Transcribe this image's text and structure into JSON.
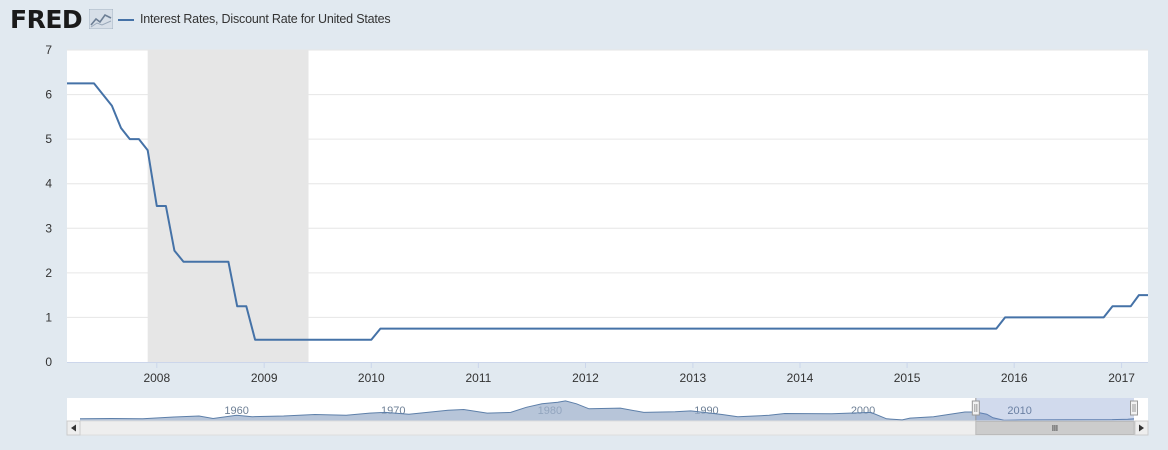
{
  "app": {
    "logo_text": "FRED"
  },
  "colors": {
    "series": "#4572a7",
    "recession": "#e6e6e6",
    "grid": "#e6e6e6",
    "plot_bg": "#ffffff",
    "page_bg": "#e1e9f0",
    "navigator_fill": "#9fb1cc",
    "navigator_line": "#5d7fa9",
    "navigator_mask": "rgba(102,133,194,0.3)"
  },
  "chart_data": {
    "type": "line",
    "title": "",
    "xlabel": "",
    "ylabel": "",
    "ylim": [
      0,
      7
    ],
    "y_ticks": [
      "0",
      "1",
      "2",
      "3",
      "4",
      "5",
      "6",
      "7"
    ],
    "xlim": [
      "2007-03-01",
      "2017-04-01"
    ],
    "x_ticks": [
      {
        "label": "2008",
        "date": "2008-01-01"
      },
      {
        "label": "2009",
        "date": "2009-01-01"
      },
      {
        "label": "2010",
        "date": "2010-01-01"
      },
      {
        "label": "2011",
        "date": "2011-01-01"
      },
      {
        "label": "2012",
        "date": "2012-01-01"
      },
      {
        "label": "2013",
        "date": "2013-01-01"
      },
      {
        "label": "2014",
        "date": "2014-01-01"
      },
      {
        "label": "2015",
        "date": "2015-01-01"
      },
      {
        "label": "2016",
        "date": "2016-01-01"
      },
      {
        "label": "2017",
        "date": "2017-01-01"
      }
    ],
    "grid": true,
    "legend": "top-left",
    "recessions": [
      {
        "start": "2007-12-01",
        "end": "2009-06-01"
      }
    ],
    "series": [
      {
        "name": "Interest Rates, Discount Rate for United States",
        "points": [
          [
            "2007-03-01",
            6.25
          ],
          [
            "2007-06-01",
            6.25
          ],
          [
            "2007-08-01",
            5.75
          ],
          [
            "2007-09-01",
            5.25
          ],
          [
            "2007-10-01",
            5.0
          ],
          [
            "2007-11-01",
            5.0
          ],
          [
            "2007-12-01",
            4.75
          ],
          [
            "2008-01-01",
            3.5
          ],
          [
            "2008-02-01",
            3.5
          ],
          [
            "2008-03-01",
            2.5
          ],
          [
            "2008-04-01",
            2.25
          ],
          [
            "2008-09-01",
            2.25
          ],
          [
            "2008-10-01",
            1.25
          ],
          [
            "2008-11-01",
            1.25
          ],
          [
            "2008-12-01",
            0.5
          ],
          [
            "2010-01-01",
            0.5
          ],
          [
            "2010-02-01",
            0.75
          ],
          [
            "2015-11-01",
            0.75
          ],
          [
            "2015-12-01",
            1.0
          ],
          [
            "2016-11-01",
            1.0
          ],
          [
            "2016-12-01",
            1.25
          ],
          [
            "2017-02-01",
            1.25
          ],
          [
            "2017-03-01",
            1.5
          ],
          [
            "2017-04-01",
            1.5
          ]
        ]
      }
    ],
    "navigator": {
      "x_labels": [
        "1960",
        "1970",
        "1980",
        "1990",
        "2000",
        "2010"
      ],
      "range_min": 1950.0,
      "range_max": 2017.3,
      "selected_start": 2007.2,
      "selected_end": 2017.3,
      "series": [
        [
          1950.0,
          1.6
        ],
        [
          1952.0,
          1.75
        ],
        [
          1954.0,
          1.6
        ],
        [
          1956.0,
          2.8
        ],
        [
          1957.6,
          3.5
        ],
        [
          1958.5,
          1.75
        ],
        [
          1960.0,
          4.0
        ],
        [
          1961.0,
          3.0
        ],
        [
          1963.0,
          3.5
        ],
        [
          1965.0,
          4.5
        ],
        [
          1967.0,
          4.0
        ],
        [
          1968.5,
          5.5
        ],
        [
          1969.5,
          6.0
        ],
        [
          1971.0,
          4.75
        ],
        [
          1973.5,
          7.5
        ],
        [
          1974.5,
          8.0
        ],
        [
          1976.0,
          5.5
        ],
        [
          1977.5,
          6.0
        ],
        [
          1978.5,
          9.5
        ],
        [
          1979.5,
          12.0
        ],
        [
          1980.5,
          13.0
        ],
        [
          1981.0,
          14.0
        ],
        [
          1981.7,
          12.0
        ],
        [
          1982.5,
          8.5
        ],
        [
          1984.5,
          9.0
        ],
        [
          1986.0,
          6.0
        ],
        [
          1988.0,
          6.5
        ],
        [
          1989.0,
          7.0
        ],
        [
          1991.0,
          4.5
        ],
        [
          1992.0,
          3.0
        ],
        [
          1994.0,
          4.0
        ],
        [
          1995.0,
          5.25
        ],
        [
          1998.0,
          5.0
        ],
        [
          2000.5,
          6.0
        ],
        [
          2001.5,
          1.5
        ],
        [
          2002.5,
          0.75
        ],
        [
          2003.0,
          2.0
        ],
        [
          2004.5,
          3.0
        ],
        [
          2006.5,
          6.25
        ],
        [
          2007.2,
          6.25
        ],
        [
          2007.9,
          4.75
        ],
        [
          2008.3,
          2.25
        ],
        [
          2009.0,
          0.5
        ],
        [
          2010.1,
          0.75
        ],
        [
          2015.9,
          1.0
        ],
        [
          2016.9,
          1.25
        ],
        [
          2017.3,
          1.5
        ]
      ]
    }
  }
}
